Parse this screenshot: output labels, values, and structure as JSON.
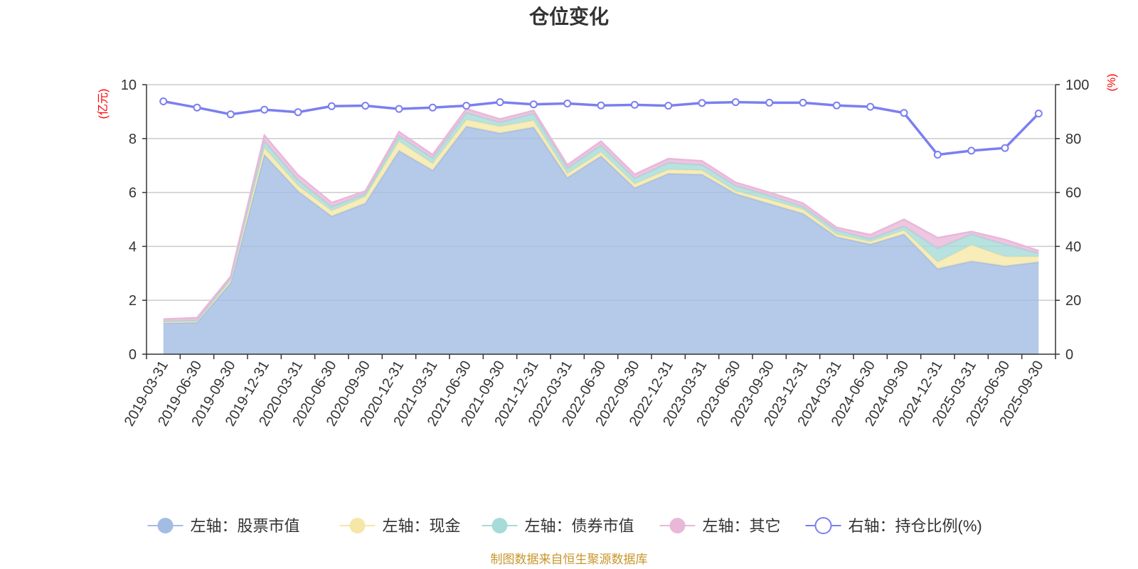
{
  "title": "仓位变化",
  "source": "制图数据来自恒生聚源数据库",
  "chart_data": {
    "type": "area",
    "title": "仓位变化",
    "categories": [
      "2019-03-31",
      "2019-06-30",
      "2019-09-30",
      "2019-12-31",
      "2020-03-31",
      "2020-06-30",
      "2020-09-30",
      "2020-12-31",
      "2021-03-31",
      "2021-06-30",
      "2021-09-30",
      "2021-12-31",
      "2022-03-31",
      "2022-06-30",
      "2022-09-30",
      "2022-12-31",
      "2023-03-31",
      "2023-06-30",
      "2023-09-30",
      "2023-12-31",
      "2024-03-31",
      "2024-06-30",
      "2024-09-30",
      "2024-12-31",
      "2025-03-31",
      "2025-06-30",
      "2025-09-30"
    ],
    "left_axis": {
      "unit": "(亿元)",
      "ylim": [
        0,
        10
      ],
      "ticks": [
        "0",
        "2",
        "4",
        "6",
        "8",
        "10"
      ]
    },
    "right_axis": {
      "unit": "(%)",
      "ylim": [
        0,
        100
      ],
      "ticks": [
        "0",
        "20",
        "40",
        "60",
        "80",
        "100"
      ]
    },
    "grid": true,
    "legend_placement": "bottom-center",
    "series": [
      {
        "name": "左轴：股票市值",
        "axis": "left",
        "stacked": true,
        "color": "#a3bce3",
        "values": [
          1.15,
          1.18,
          2.65,
          7.4,
          6.05,
          5.12,
          5.6,
          7.55,
          6.82,
          8.45,
          8.2,
          8.42,
          6.55,
          7.35,
          6.17,
          6.7,
          6.67,
          5.95,
          5.58,
          5.22,
          4.35,
          4.08,
          4.45,
          3.17,
          3.45,
          3.27,
          3.42
        ]
      },
      {
        "name": "左轴：现金",
        "axis": "left",
        "stacked": true,
        "color": "#f6e7a8",
        "values": [
          0.05,
          0.05,
          0.1,
          0.25,
          0.2,
          0.2,
          0.25,
          0.35,
          0.25,
          0.25,
          0.25,
          0.25,
          0.15,
          0.15,
          0.15,
          0.15,
          0.15,
          0.1,
          0.15,
          0.15,
          0.1,
          0.1,
          0.15,
          0.25,
          0.6,
          0.35,
          0.2
        ]
      },
      {
        "name": "左轴：债券市值",
        "axis": "left",
        "stacked": true,
        "color": "#a6dbd8",
        "values": [
          0.02,
          0.02,
          0.05,
          0.25,
          0.2,
          0.15,
          0.1,
          0.2,
          0.2,
          0.25,
          0.15,
          0.25,
          0.2,
          0.25,
          0.2,
          0.25,
          0.2,
          0.2,
          0.15,
          0.1,
          0.15,
          0.1,
          0.15,
          0.5,
          0.4,
          0.45,
          0.12
        ]
      },
      {
        "name": "左轴：其它",
        "axis": "left",
        "stacked": true,
        "color": "#e9b8d9",
        "values": [
          0.08,
          0.1,
          0.08,
          0.22,
          0.2,
          0.15,
          0.1,
          0.15,
          0.13,
          0.15,
          0.12,
          0.12,
          0.12,
          0.15,
          0.15,
          0.15,
          0.15,
          0.12,
          0.12,
          0.13,
          0.1,
          0.15,
          0.25,
          0.4,
          0.1,
          0.18,
          0.1
        ]
      },
      {
        "name": "右轴：持仓比例(%)",
        "axis": "right",
        "type": "line",
        "color": "#7b7ff0",
        "values": [
          93.8,
          91.5,
          89.0,
          90.7,
          89.8,
          92.0,
          92.2,
          91.0,
          91.5,
          92.2,
          93.5,
          92.7,
          93.0,
          92.3,
          92.5,
          92.2,
          93.2,
          93.5,
          93.3,
          93.3,
          92.3,
          91.8,
          89.5,
          74.0,
          75.5,
          76.5,
          89.3
        ]
      }
    ]
  }
}
